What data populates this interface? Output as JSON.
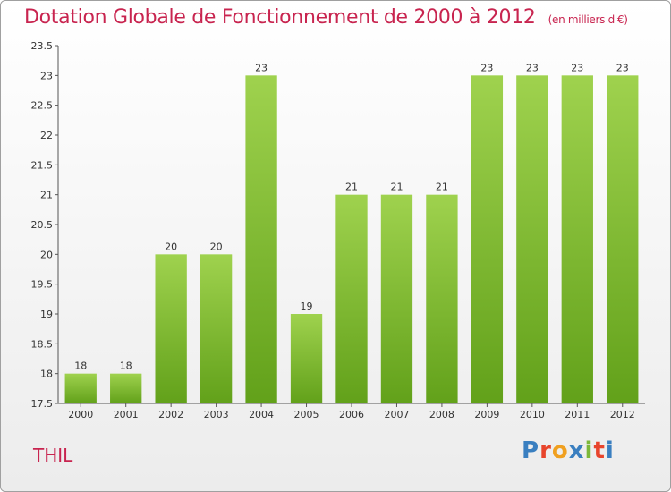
{
  "header": {
    "title": "Dotation Globale de Fonctionnement de 2000 à 2012",
    "subtitle": "(en milliers d'€)"
  },
  "footer": {
    "commune": "THIL",
    "logo_text": "Proxiti",
    "logo_colors": [
      "#3a7fc0",
      "#e8452c",
      "#f0a020",
      "#3a7fc0",
      "#7cb83a",
      "#e8452c",
      "#3a7fc0"
    ]
  },
  "colors": {
    "bar_light": "#9fd24e",
    "bar_dark": "#62a11a",
    "accent": "#c8244f"
  },
  "chart_data": {
    "type": "bar",
    "categories": [
      "2000",
      "2001",
      "2002",
      "2003",
      "2004",
      "2005",
      "2006",
      "2007",
      "2008",
      "2009",
      "2010",
      "2011",
      "2012"
    ],
    "values": [
      18,
      18,
      20,
      20,
      23,
      19,
      21,
      21,
      21,
      23,
      23,
      23,
      23
    ],
    "data_labels": [
      "18",
      "18",
      "20",
      "20",
      "23",
      "19",
      "21",
      "21",
      "21",
      "23",
      "23",
      "23",
      "23"
    ],
    "title": "Dotation Globale de Fonctionnement de 2000 à 2012",
    "subtitle": "(en milliers d'€)",
    "xlabel": "",
    "ylabel": "",
    "ylim": [
      17.5,
      23.5
    ],
    "yticks": [
      17.5,
      18,
      18.5,
      19,
      19.5,
      20,
      20.5,
      21,
      21.5,
      22,
      22.5,
      23,
      23.5
    ],
    "ytick_labels": [
      "17.5",
      "18",
      "18.5",
      "19",
      "19.5",
      "20",
      "20.5",
      "21",
      "21.5",
      "22",
      "22.5",
      "23",
      "23.5"
    ],
    "grid": false,
    "legend": "none"
  }
}
